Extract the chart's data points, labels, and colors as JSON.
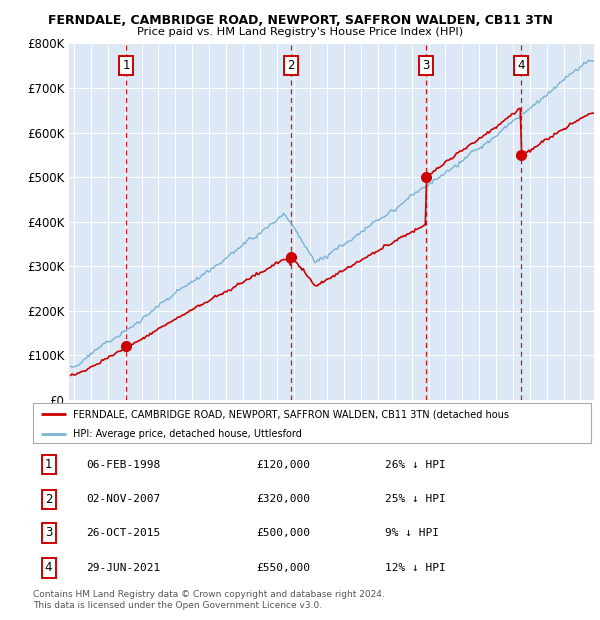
{
  "title1": "FERNDALE, CAMBRIDGE ROAD, NEWPORT, SAFFRON WALDEN, CB11 3TN",
  "title2": "Price paid vs. HM Land Registry's House Price Index (HPI)",
  "ylim": [
    0,
    800000
  ],
  "yticks": [
    0,
    100000,
    200000,
    300000,
    400000,
    500000,
    600000,
    700000,
    800000
  ],
  "ytick_labels": [
    "£0",
    "£100K",
    "£200K",
    "£300K",
    "£400K",
    "£500K",
    "£600K",
    "£700K",
    "£800K"
  ],
  "hpi_color": "#7ab3d4",
  "price_color": "#cc0000",
  "vline_color": "#cc0000",
  "background_color": "#dce8f5",
  "legend_line1": "FERNDALE, CAMBRIDGE ROAD, NEWPORT, SAFFRON WALDEN, CB11 3TN (detached hous",
  "legend_line2": "HPI: Average price, detached house, Uttlesford",
  "sales": [
    {
      "num": 1,
      "date": "06-FEB-1998",
      "price": 120000,
      "pct": "26%",
      "year": 1998.1
    },
    {
      "num": 2,
      "date": "02-NOV-2007",
      "price": 320000,
      "pct": "25%",
      "year": 2007.84
    },
    {
      "num": 3,
      "date": "26-OCT-2015",
      "price": 500000,
      "pct": "9%",
      "year": 2015.82
    },
    {
      "num": 4,
      "date": "29-JUN-2021",
      "price": 550000,
      "pct": "12%",
      "year": 2021.49
    }
  ],
  "footer": "Contains HM Land Registry data © Crown copyright and database right 2024.\nThis data is licensed under the Open Government Licence v3.0.",
  "xlim_start": 1994.7,
  "xlim_end": 2025.8
}
